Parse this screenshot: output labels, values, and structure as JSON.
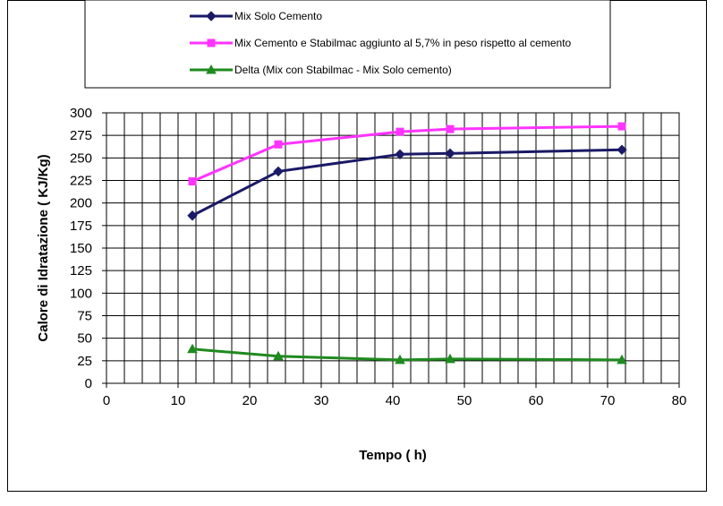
{
  "chart_data": {
    "type": "line",
    "title": "",
    "xlabel": "Tempo ( h)",
    "ylabel": "Calore di Idratazione ( KJ/Kg)",
    "xlim": [
      0,
      80
    ],
    "ylim": [
      0,
      300
    ],
    "x_ticks": [
      0,
      10,
      20,
      30,
      40,
      50,
      60,
      70,
      80
    ],
    "y_ticks": [
      0,
      25,
      50,
      75,
      100,
      125,
      150,
      175,
      200,
      225,
      250,
      275,
      300
    ],
    "x_minor_step": 2.5,
    "grid": true,
    "legend_position": "top",
    "series": [
      {
        "name": "Mix Solo Cemento",
        "color": "#1a1a66",
        "marker": "diamond",
        "x": [
          12,
          24,
          41,
          48,
          72
        ],
        "values": [
          186,
          235,
          254,
          255,
          259
        ]
      },
      {
        "name": "Mix Cemento e Stabilmac aggiunto al 5,7%  in peso rispetto al cemento",
        "color": "#ff33ff",
        "marker": "square",
        "x": [
          12,
          24,
          41,
          48,
          72
        ],
        "values": [
          224,
          265,
          279,
          282,
          285
        ]
      },
      {
        "name": "Delta (Mix con Stabilmac - Mix Solo cemento)",
        "color": "#1f8a1f",
        "marker": "triangle",
        "x": [
          12,
          24,
          41,
          48,
          72
        ],
        "values": [
          38,
          30,
          26,
          27,
          26
        ]
      }
    ]
  }
}
